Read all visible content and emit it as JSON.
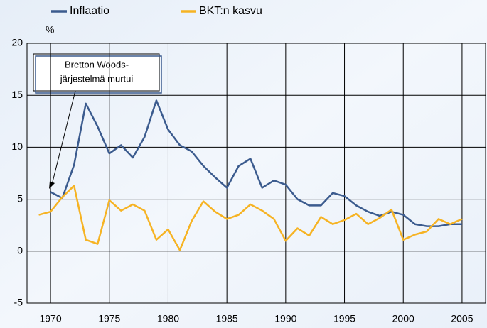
{
  "chart_data": {
    "type": "line",
    "y_label": "%",
    "annotation": [
      "Bretton Woods-",
      "järjestelmä murtui"
    ],
    "series": [
      {
        "name": "Inflaatio",
        "color": "#3b5b8e",
        "x": [
          1970,
          1971,
          1972,
          1973,
          1974,
          1975,
          1976,
          1977,
          1978,
          1979,
          1980,
          1981,
          1982,
          1983,
          1984,
          1985,
          1986,
          1987,
          1988,
          1989,
          1990,
          1991,
          1992,
          1993,
          1994,
          1995,
          1996,
          1997,
          1998,
          1999,
          2000,
          2001,
          2002,
          2003,
          2004,
          2005
        ],
        "values": [
          5.7,
          5.1,
          8.3,
          14.2,
          12.0,
          9.4,
          10.2,
          9.0,
          11.0,
          14.5,
          11.7,
          10.2,
          9.6,
          8.2,
          7.1,
          6.1,
          8.2,
          8.9,
          6.1,
          6.8,
          6.4,
          5.0,
          4.4,
          4.4,
          5.6,
          5.3,
          4.4,
          3.8,
          3.4,
          3.8,
          3.5,
          2.6,
          2.4,
          2.4,
          2.6,
          2.6
        ]
      },
      {
        "name": "BKT:n kasvu",
        "color": "#f6b323",
        "x": [
          1969,
          1970,
          1971,
          1972,
          1973,
          1974,
          1975,
          1976,
          1977,
          1978,
          1979,
          1980,
          1981,
          1982,
          1983,
          1984,
          1985,
          1986,
          1987,
          1988,
          1989,
          1990,
          1991,
          1992,
          1993,
          1994,
          1995,
          1996,
          1997,
          1998,
          1999,
          2000,
          2001,
          2002,
          2003,
          2004,
          2005
        ],
        "values": [
          3.5,
          3.8,
          5.2,
          6.3,
          1.1,
          0.7,
          4.9,
          3.9,
          4.5,
          3.9,
          1.1,
          2.1,
          0.1,
          2.9,
          4.8,
          3.8,
          3.1,
          3.5,
          4.5,
          3.9,
          3.1,
          1.0,
          2.2,
          1.5,
          3.3,
          2.6,
          3.0,
          3.6,
          2.6,
          3.2,
          4.0,
          1.1,
          1.6,
          1.9,
          3.1,
          2.6,
          3.1
        ]
      }
    ],
    "xlim": [
      1968,
      2007
    ],
    "xticks": [
      1970,
      1975,
      1980,
      1985,
      1990,
      1995,
      2000,
      2005
    ],
    "ylim": [
      -5,
      20
    ],
    "yticks": [
      -5,
      0,
      5,
      10,
      15,
      20
    ],
    "grid": true
  }
}
